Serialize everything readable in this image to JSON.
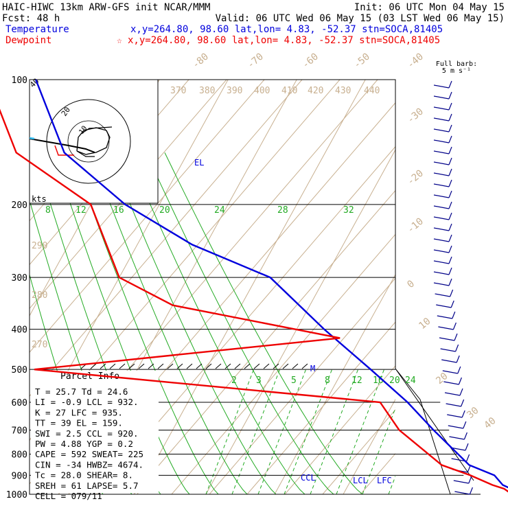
{
  "header": {
    "line1_left": "HAIC-HIWC 13km ARW-GFS init   NCAR/MMM",
    "line1_right": "Init: 06 UTC Mon 04 May 15",
    "line2_left": "Fcst:    48 h",
    "line2_right": "Valid: 06 UTC Wed 06 May 15 (03 LST Wed 06 May 15)",
    "temp_label": "Temperature",
    "temp_info": "x,y=264.80, 98.60   lat,lon=  4.83, -52.37   stn=SOCA,81405",
    "dew_label": "Dewpoint",
    "dew_star": "☆",
    "dew_info": "x,y=264.80, 98.60   lat,lon=  4.83, -52.37   stn=SOCA,81405"
  },
  "barb_legend": {
    "line1": "Full barb:",
    "line2": "5 m s⁻¹"
  },
  "hodograph": {
    "ring_label": "20",
    "inner_label": "10",
    "units": "kts",
    "corner_label": "40"
  },
  "colors": {
    "temperature": "#0000dd",
    "dewpoint": "#ee0000",
    "isotherm": "#c8b090",
    "mixing": "#22aa22",
    "isobar": "#000000",
    "hodo_cyan": "#33bbee",
    "barb": "#000088"
  },
  "parcel": {
    "title": "Parcel Info",
    "rows": [
      "T  =   25.7  Td =  24.6",
      "LI =   -0.9  LCL =  932.",
      "K  =     27  LFC =  935.",
      "TT =     39  EL  =  159.",
      "SWI =   2.5  CCL =  920.",
      "PW =   4.88  YGP =   0.2",
      "CAPE =  592  SWEAT=  225",
      "CIN =   -34  HWBZ= 4674.",
      "Tc =   28.0  SHEAR=   8.",
      "SREH =   61  LAPSE=   5.7",
      "CELL = 079/11"
    ]
  },
  "chart_data": {
    "type": "line",
    "pressure_levels": [
      100,
      200,
      300,
      400,
      500,
      600,
      700,
      800,
      900,
      1000
    ],
    "pressure_labels": [
      "100",
      "200",
      "300",
      "400",
      "500",
      "600",
      "700",
      "800",
      "900",
      "1000"
    ],
    "isotherm_labels": [
      "-80",
      "-70",
      "-60",
      "-50",
      "-40",
      "-30",
      "-20",
      "-10",
      "0",
      "10",
      "20",
      "30",
      "40"
    ],
    "theta_labels": [
      "370",
      "380",
      "390",
      "400",
      "410",
      "420",
      "430",
      "440",
      "290",
      "280",
      "270"
    ],
    "mixing_ratio_labels": [
      "8",
      "12",
      "16",
      "20",
      "24",
      "28",
      "32",
      "2",
      "3",
      "5",
      "8",
      "12",
      "16",
      "20",
      "24"
    ],
    "level_labels": {
      "el": "EL",
      "lcl": "LCL",
      "lfc": "LFC",
      "ccl": "CCL",
      "m": "M"
    },
    "series": [
      {
        "name": "Temperature",
        "x": [
          25.7,
          24.0,
          22.5,
          20.5,
          16.0,
          8.0,
          2.0,
          -6.0,
          -16.0,
          -28.0,
          -42.0,
          -55.0,
          -68.0,
          -78.0
        ],
        "y": [
          1000,
          970,
          950,
          900,
          850,
          700,
          600,
          500,
          400,
          300,
          250,
          200,
          150,
          100
        ]
      },
      {
        "name": "Dewpoint",
        "x": [
          24.6,
          23.0,
          21.0,
          17.0,
          12.0,
          3.0,
          -2.0,
          -55.0,
          -13.0,
          -40.0,
          -50.0,
          -60.0,
          -75.0,
          -85.0
        ],
        "y": [
          1000,
          970,
          950,
          900,
          850,
          700,
          600,
          500,
          420,
          350,
          300,
          200,
          150,
          100
        ]
      }
    ]
  }
}
